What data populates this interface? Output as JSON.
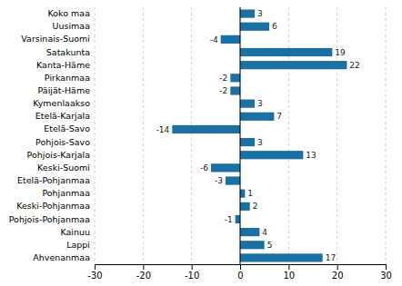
{
  "chart_data": {
    "type": "bar",
    "orientation": "horizontal",
    "categories": [
      "Ahvenanmaa",
      "Lappi",
      "Kainuu",
      "Pohjois-Pohjanmaa",
      "Keski-Pohjanmaa",
      "Pohjanmaa",
      "Etelä-Pohjanmaa",
      "Keski-Suomi",
      "Pohjois-Karjala",
      "Pohjois-Savo",
      "Etelä-Savo",
      "Etelä-Karjala",
      "Kymenlaakso",
      "Päijät-Häme",
      "Pirkanmaa",
      "Kanta-Häme",
      "Satakunta",
      "Varsinais-Suomi",
      "Uusimaa",
      "Koko maa"
    ],
    "values": [
      17,
      5,
      4,
      -1,
      2,
      1,
      -3,
      -6,
      13,
      3,
      -14,
      7,
      3,
      -2,
      -2,
      22,
      19,
      -4,
      6,
      3
    ],
    "color": "#1a6fa3",
    "xlim": [
      -30,
      30
    ],
    "xticks": [
      -30,
      -20,
      -10,
      0,
      10,
      20,
      30
    ],
    "grid": true,
    "data_labels": true
  }
}
